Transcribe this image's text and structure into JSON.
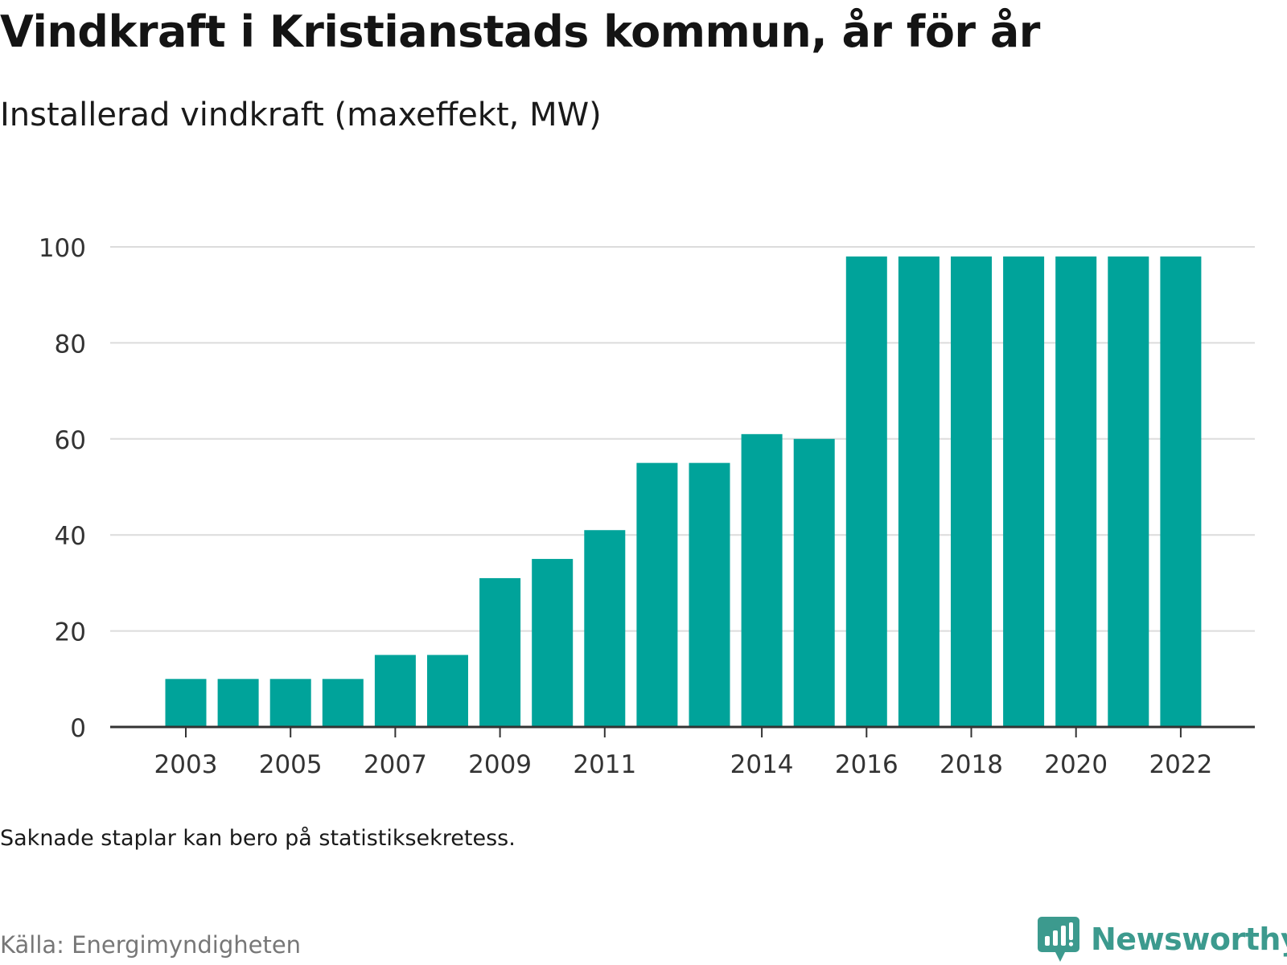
{
  "title": "Vindkraft i Kristianstads kommun, år för år",
  "subtitle": "Installerad vindkraft (maxeffekt, MW)",
  "note": "Saknade staplar kan bero på statistiksekretess.",
  "source": "Källa: Energimyndigheten",
  "logo": {
    "name": "Newsworthy",
    "icon": "newsworthy-logo-icon",
    "color": "#3c9a8e"
  },
  "chart_data": {
    "type": "bar",
    "categories": [
      2003,
      2004,
      2005,
      2006,
      2007,
      2008,
      2009,
      2010,
      2011,
      2012,
      2013,
      2014,
      2015,
      2016,
      2017,
      2018,
      2019,
      2020,
      2021,
      2022
    ],
    "values": [
      10,
      10,
      10,
      10,
      15,
      15,
      31,
      35,
      41,
      55,
      55,
      61,
      60,
      98,
      98,
      98,
      98,
      98,
      98,
      98
    ],
    "x_ticks": [
      "2003",
      "2005",
      "2007",
      "2009",
      "2011",
      "2014",
      "2016",
      "2018",
      "2020",
      "2022"
    ],
    "y_ticks": [
      "0",
      "20",
      "40",
      "60",
      "80",
      "100"
    ],
    "ylim": [
      0,
      100
    ],
    "grid": true,
    "bar_color": "#00a39a"
  }
}
